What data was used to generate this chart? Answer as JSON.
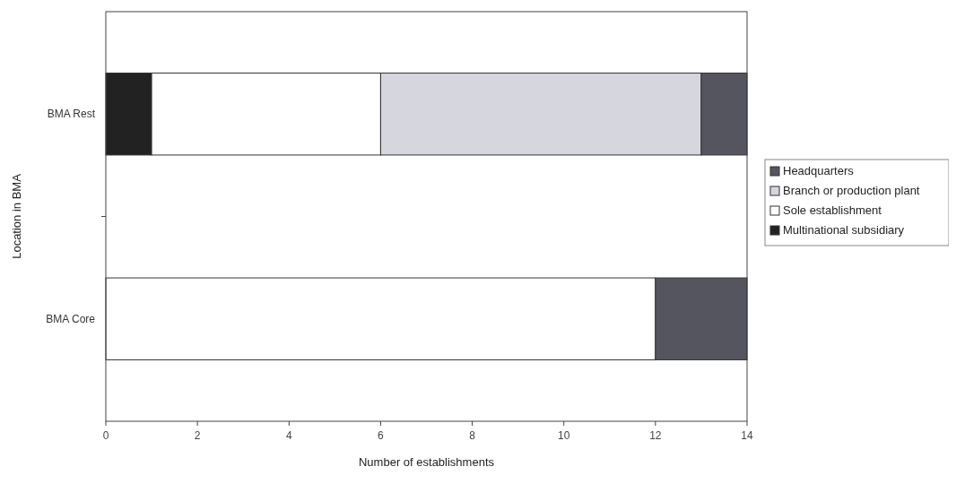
{
  "chart_data": {
    "type": "bar",
    "orientation": "horizontal",
    "stacked": true,
    "xlabel": "Number of establishments",
    "ylabel": "Location in BMA",
    "categories": [
      "BMA Rest",
      "BMA Core"
    ],
    "series": [
      {
        "name": "Multinational subsidiary",
        "color": "#222222",
        "values": [
          1,
          0
        ]
      },
      {
        "name": "Sole establishment",
        "color": "#ffffff",
        "values": [
          5,
          12
        ]
      },
      {
        "name": "Branch or production plant",
        "color": "#d6d6de",
        "values": [
          7,
          0
        ]
      },
      {
        "name": "Headquarters",
        "color": "#55555f",
        "values": [
          1,
          2
        ]
      }
    ],
    "xlim": [
      0,
      14
    ],
    "xticks": [
      0,
      2,
      4,
      6,
      8,
      10,
      12,
      14
    ],
    "grid": false,
    "legend": "right"
  }
}
